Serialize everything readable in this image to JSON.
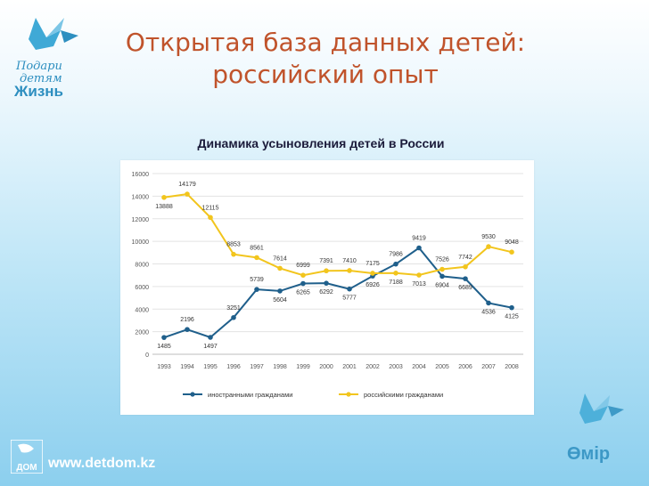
{
  "header": {
    "title_line1": "Открытая база данных детей:",
    "title_line2": "российский опыт"
  },
  "logo_top": {
    "line1": "Подари",
    "line2": "детям",
    "line3": "Жизнь",
    "icon": "bird-icon"
  },
  "footer": {
    "url": "www.detdom.kz",
    "logo_text": "ДОМ"
  },
  "logo_bottom_right": {
    "text": "Өмір",
    "icon": "bird-icon"
  },
  "colors": {
    "title": "#c0532b",
    "series_foreign": "#1f5f8b",
    "series_russian": "#f2c51d",
    "axis_text": "#555555"
  },
  "chart_data": {
    "type": "line",
    "title": "Динамика усыновления детей в России",
    "categories": [
      "1993",
      "1994",
      "1995",
      "1996",
      "1997",
      "1998",
      "1999",
      "2000",
      "2001",
      "2002",
      "2003",
      "2004",
      "2005",
      "2006",
      "2007",
      "2008"
    ],
    "series": [
      {
        "name": "иностранными гражданами",
        "values": [
          1485,
          2196,
          1497,
          3251,
          5739,
          5604,
          6265,
          6292,
          5777,
          6926,
          7986,
          9419,
          6904,
          6689,
          4536,
          4125
        ]
      },
      {
        "name": "российскими гражданами",
        "values": [
          13888,
          14179,
          12115,
          8853,
          8561,
          7614,
          6999,
          7391,
          7410,
          7175,
          7188,
          7013,
          7526,
          7742,
          9530,
          9048
        ]
      }
    ],
    "ylim": [
      0,
      16000
    ],
    "yticks": [
      "0",
      "2000",
      "4000",
      "6000",
      "8000",
      "10000",
      "12000",
      "14000",
      "16000"
    ],
    "grid": true,
    "legend_position": "bottom"
  }
}
